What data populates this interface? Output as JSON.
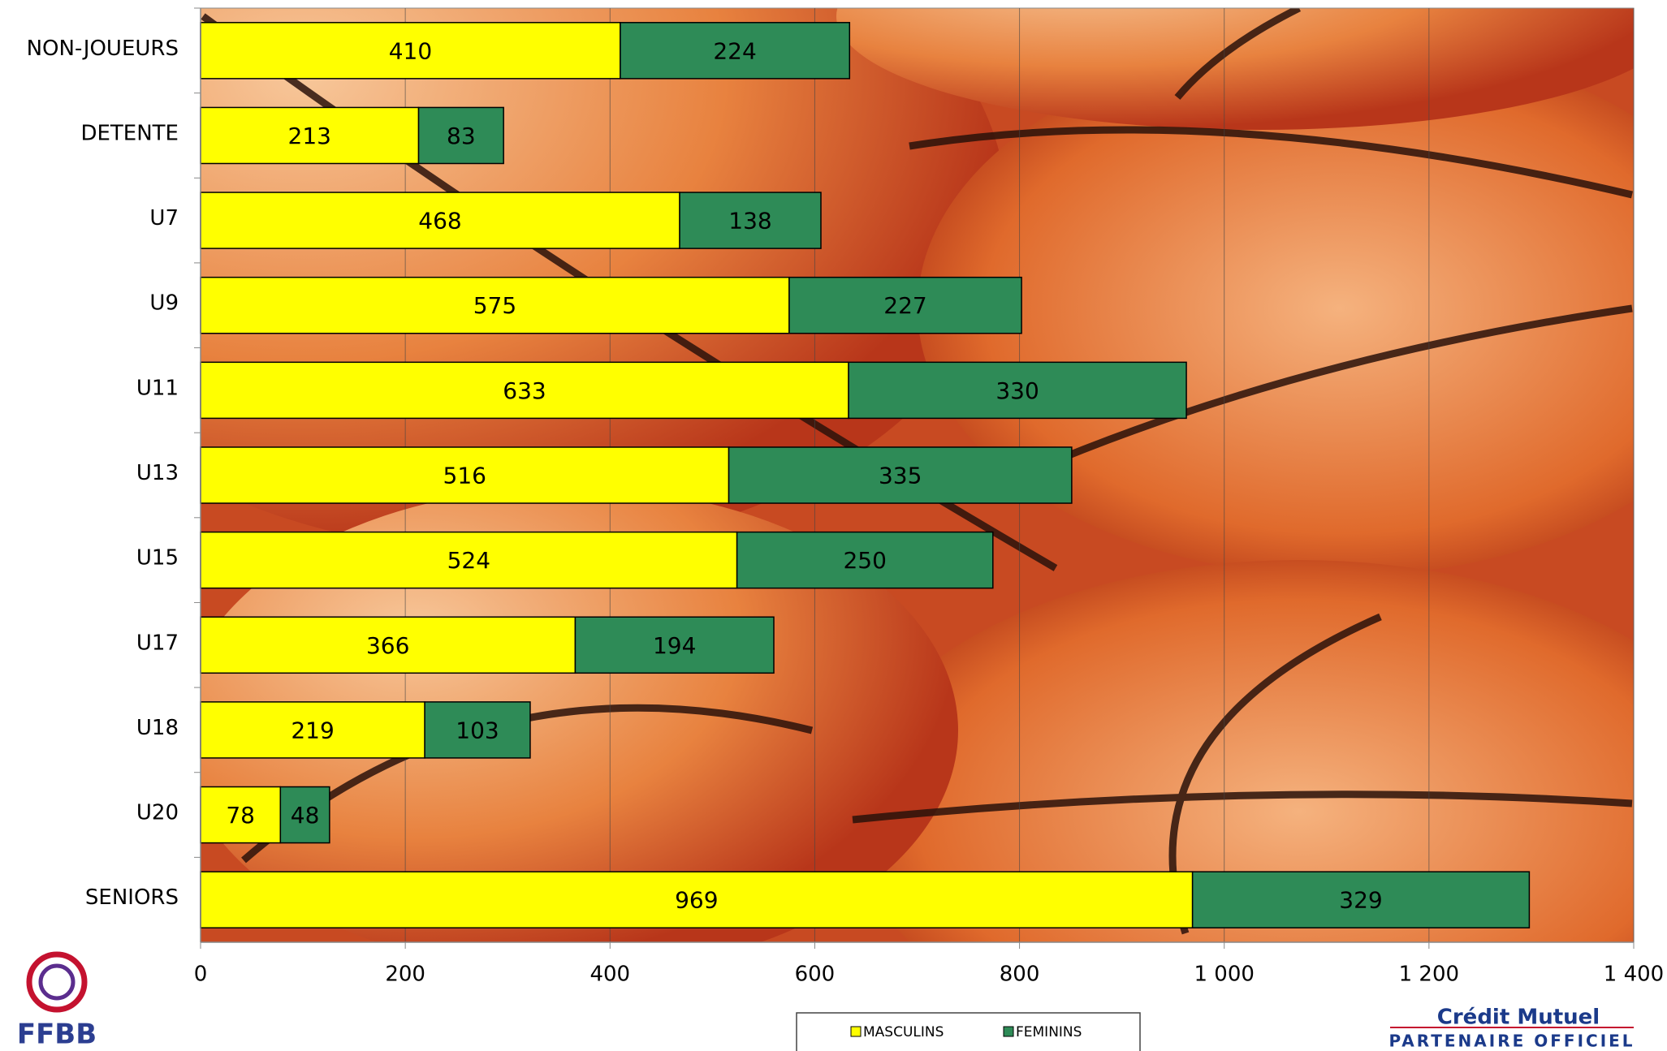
{
  "chart_data": {
    "type": "stacked-bar-horizontal",
    "categories": [
      "NON-JOUEURS",
      "DETENTE",
      "U7",
      "U9",
      "U11",
      "U13",
      "U15",
      "U17",
      "U18",
      "U20",
      "SENIORS"
    ],
    "series": [
      {
        "name": "MASCULINS",
        "color": "#ffff00",
        "values": [
          410,
          213,
          468,
          575,
          633,
          516,
          524,
          366,
          219,
          78,
          969
        ]
      },
      {
        "name": "FEMININS",
        "color": "#2e8b57",
        "values": [
          224,
          83,
          138,
          227,
          330,
          335,
          250,
          194,
          103,
          48,
          329
        ]
      }
    ],
    "xlim": [
      0,
      1400
    ],
    "xticks": [
      0,
      200,
      400,
      600,
      800,
      {
        "value": 1000,
        "label": "1 000"
      },
      {
        "value": 1200,
        "label": "1 200"
      },
      {
        "value": 1400,
        "label": "1 400"
      }
    ],
    "grid": true,
    "legend": "bottom"
  },
  "logos": {
    "left": "FFBB",
    "right": "Crédit Mutuel",
    "right_caption": "PARTENAIRE OFFICIEL"
  }
}
